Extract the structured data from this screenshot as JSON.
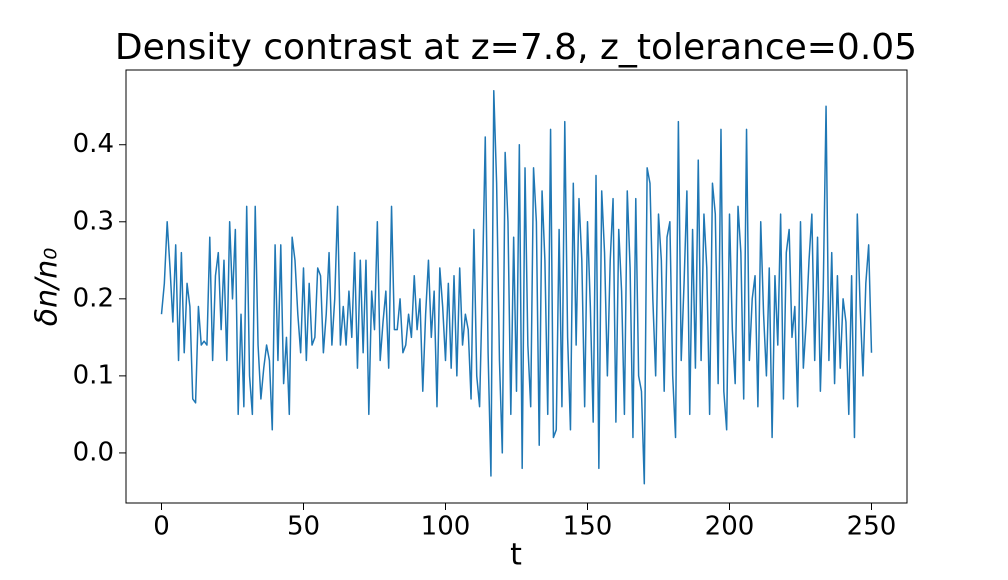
{
  "chart_data": {
    "type": "line",
    "title": "Density contrast at z=7.8, z_tolerance=0.05",
    "x_label": "t",
    "y_label": "δn/n₀",
    "x": [
      0,
      1,
      2,
      3,
      4,
      5,
      6,
      7,
      8,
      9,
      10,
      11,
      12,
      13,
      14,
      15,
      16,
      17,
      18,
      19,
      20,
      21,
      22,
      23,
      24,
      25,
      26,
      27,
      28,
      29,
      30,
      31,
      32,
      33,
      34,
      35,
      36,
      37,
      38,
      39,
      40,
      41,
      42,
      43,
      44,
      45,
      46,
      47,
      48,
      49,
      50,
      51,
      52,
      53,
      54,
      55,
      56,
      57,
      58,
      59,
      60,
      61,
      62,
      63,
      64,
      65,
      66,
      67,
      68,
      69,
      70,
      71,
      72,
      73,
      74,
      75,
      76,
      77,
      78,
      79,
      80,
      81,
      82,
      83,
      84,
      85,
      86,
      87,
      88,
      89,
      90,
      91,
      92,
      93,
      94,
      95,
      96,
      97,
      98,
      99,
      100,
      101,
      102,
      103,
      104,
      105,
      106,
      107,
      108,
      109,
      110,
      111,
      112,
      113,
      114,
      115,
      116,
      117,
      118,
      119,
      120,
      121,
      122,
      123,
      124,
      125,
      126,
      127,
      128,
      129,
      130,
      131,
      132,
      133,
      134,
      135,
      136,
      137,
      138,
      139,
      140,
      141,
      142,
      143,
      144,
      145,
      146,
      147,
      148,
      149,
      150,
      151,
      152,
      153,
      154,
      155,
      156,
      157,
      158,
      159,
      160,
      161,
      162,
      163,
      164,
      165,
      166,
      167,
      168,
      169,
      170,
      171,
      172,
      173,
      174,
      175,
      176,
      177,
      178,
      179,
      180,
      181,
      182,
      183,
      184,
      185,
      186,
      187,
      188,
      189,
      190,
      191,
      192,
      193,
      194,
      195,
      196,
      197,
      198,
      199,
      200,
      201,
      202,
      203,
      204,
      205,
      206,
      207,
      208,
      209,
      210,
      211,
      212,
      213,
      214,
      215,
      216,
      217,
      218,
      219,
      220,
      221,
      222,
      223,
      224,
      225,
      226,
      227,
      228,
      229,
      230,
      231,
      232,
      233,
      234,
      235,
      236,
      237,
      238,
      239,
      240,
      241,
      242,
      243,
      244,
      245,
      246,
      247,
      248,
      249,
      250
    ],
    "series": [
      {
        "color": "#1f77b4",
        "values": [
          0.18,
          0.22,
          0.3,
          0.24,
          0.17,
          0.27,
          0.12,
          0.26,
          0.13,
          0.22,
          0.19,
          0.07,
          0.065,
          0.19,
          0.14,
          0.145,
          0.14,
          0.28,
          0.12,
          0.23,
          0.26,
          0.16,
          0.25,
          0.12,
          0.3,
          0.2,
          0.29,
          0.05,
          0.18,
          0.06,
          0.32,
          0.1,
          0.05,
          0.32,
          0.14,
          0.07,
          0.11,
          0.14,
          0.12,
          0.03,
          0.27,
          0.12,
          0.27,
          0.09,
          0.15,
          0.05,
          0.28,
          0.25,
          0.18,
          0.13,
          0.24,
          0.12,
          0.22,
          0.14,
          0.15,
          0.24,
          0.23,
          0.13,
          0.18,
          0.26,
          0.14,
          0.2,
          0.32,
          0.14,
          0.19,
          0.14,
          0.21,
          0.15,
          0.26,
          0.11,
          0.25,
          0.13,
          0.25,
          0.05,
          0.21,
          0.16,
          0.3,
          0.12,
          0.17,
          0.21,
          0.11,
          0.32,
          0.16,
          0.16,
          0.2,
          0.13,
          0.14,
          0.18,
          0.15,
          0.23,
          0.16,
          0.2,
          0.08,
          0.18,
          0.25,
          0.15,
          0.21,
          0.06,
          0.24,
          0.19,
          0.12,
          0.22,
          0.11,
          0.23,
          0.1,
          0.24,
          0.14,
          0.18,
          0.16,
          0.07,
          0.29,
          0.1,
          0.06,
          0.22,
          0.41,
          0.13,
          -0.03,
          0.47,
          0.35,
          0.12,
          0.0,
          0.39,
          0.3,
          0.05,
          0.28,
          0.08,
          0.4,
          -0.02,
          0.37,
          0.14,
          0.06,
          0.37,
          0.3,
          0.01,
          0.34,
          0.25,
          0.05,
          0.42,
          0.02,
          0.03,
          0.29,
          0.06,
          0.43,
          0.15,
          0.03,
          0.35,
          0.14,
          0.33,
          0.25,
          0.06,
          0.3,
          0.19,
          0.04,
          0.36,
          -0.02,
          0.34,
          0.26,
          0.1,
          0.25,
          0.33,
          0.04,
          0.29,
          0.21,
          0.05,
          0.34,
          0.24,
          0.02,
          0.33,
          0.1,
          0.08,
          -0.04,
          0.37,
          0.35,
          0.2,
          0.1,
          0.31,
          0.25,
          0.08,
          0.28,
          0.3,
          0.1,
          0.02,
          0.43,
          0.12,
          0.22,
          0.34,
          0.05,
          0.29,
          0.11,
          0.38,
          0.12,
          0.31,
          0.24,
          0.05,
          0.35,
          0.31,
          0.09,
          0.42,
          0.08,
          0.03,
          0.31,
          0.16,
          0.09,
          0.32,
          0.26,
          0.07,
          0.42,
          0.12,
          0.2,
          0.23,
          0.06,
          0.3,
          0.18,
          0.1,
          0.24,
          0.02,
          0.23,
          0.14,
          0.31,
          0.07,
          0.26,
          0.29,
          0.15,
          0.19,
          0.06,
          0.3,
          0.11,
          0.17,
          0.25,
          0.31,
          0.12,
          0.28,
          0.08,
          0.21,
          0.45,
          0.12,
          0.26,
          0.09,
          0.23,
          0.11,
          0.2,
          0.17,
          0.05,
          0.23,
          0.02,
          0.31,
          0.19,
          0.1,
          0.22,
          0.27,
          0.13
        ]
      }
    ],
    "xlim": [
      -12.5,
      262.5
    ],
    "ylim": [
      -0.065,
      0.497
    ],
    "xticks": [
      0,
      50,
      100,
      150,
      200,
      250
    ],
    "yticks": [
      {
        "value": 0,
        "label": "0.0"
      },
      0.1,
      0.2,
      0.3,
      0.4
    ],
    "grid": false
  }
}
